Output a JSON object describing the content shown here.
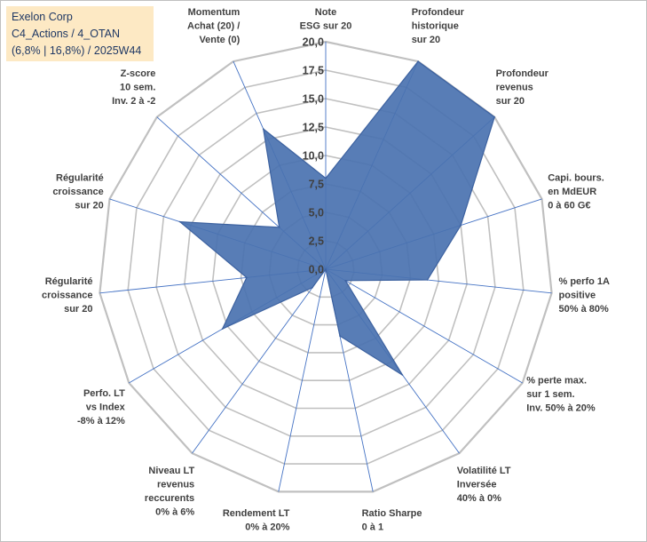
{
  "title_box": {
    "line1": "Exelon Corp",
    "line2": "C4_Actions / 4_OTAN",
    "line3": "(6,8% | 16,8%) / 2025W44"
  },
  "colors": {
    "fill": "#4a72b0",
    "stroke": "#3d62a0",
    "grid": "#c0c0c0",
    "spoke": "#4472c4",
    "text": "#404040",
    "title_bg": "#fde9c4",
    "title_text": "#1f3864"
  },
  "chart_data": {
    "type": "radar",
    "r_range": [
      0,
      20
    ],
    "r_step": 2.5,
    "tick_labels": [
      "0,0",
      "2,5",
      "5,0",
      "7,5",
      "10,0",
      "12,5",
      "15,0",
      "17,5",
      "20,0"
    ],
    "axes": [
      {
        "label": [
          "Note",
          "ESG sur 20"
        ],
        "value": 8.0
      },
      {
        "label": [
          "Profondeur",
          "historique",
          "sur 20"
        ],
        "value": 20.0
      },
      {
        "label": [
          "Profondeur",
          "revenus",
          "sur 20"
        ],
        "value": 20.0
      },
      {
        "label": [
          "Capi. bours.",
          "en MdEUR",
          "0 à 60 G€"
        ],
        "value": 12.5
      },
      {
        "label": [
          "% perfo 1A",
          "positive",
          "50% à 80%"
        ],
        "value": 9.0
      },
      {
        "label": [
          "% perte max.",
          "sur 1 sem.",
          "Inv. 50% à 20%"
        ],
        "value": 2.0
      },
      {
        "label": [
          "Volatilité LT",
          "Inversée",
          "40% à 0%"
        ],
        "value": 11.5
      },
      {
        "label": [
          "Ratio Sharpe",
          "0 à 1"
        ],
        "value": 6.0
      },
      {
        "label": [
          "Rendement LT",
          "0% à 20%"
        ],
        "value": 0.0
      },
      {
        "label": [
          "Niveau LT",
          "revenus",
          "reccurents",
          "0% à 6%"
        ],
        "value": 2.0
      },
      {
        "label": [
          "Perfo. LT",
          "vs Index",
          "-8% à 12%"
        ],
        "value": 10.5
      },
      {
        "label": [
          "Régularité",
          "croissance",
          "sur 20"
        ],
        "value": 7.0
      },
      {
        "label": [
          "Régularité",
          "croissance",
          "sur 20"
        ],
        "value": 13.5
      },
      {
        "label": [
          "Z-score",
          "10 sem.",
          "Inv. 2 à -2"
        ],
        "value": 5.5
      },
      {
        "label": [
          "Momentum",
          "Achat (20) /",
          "Vente (0)"
        ],
        "value": 13.5
      }
    ]
  }
}
